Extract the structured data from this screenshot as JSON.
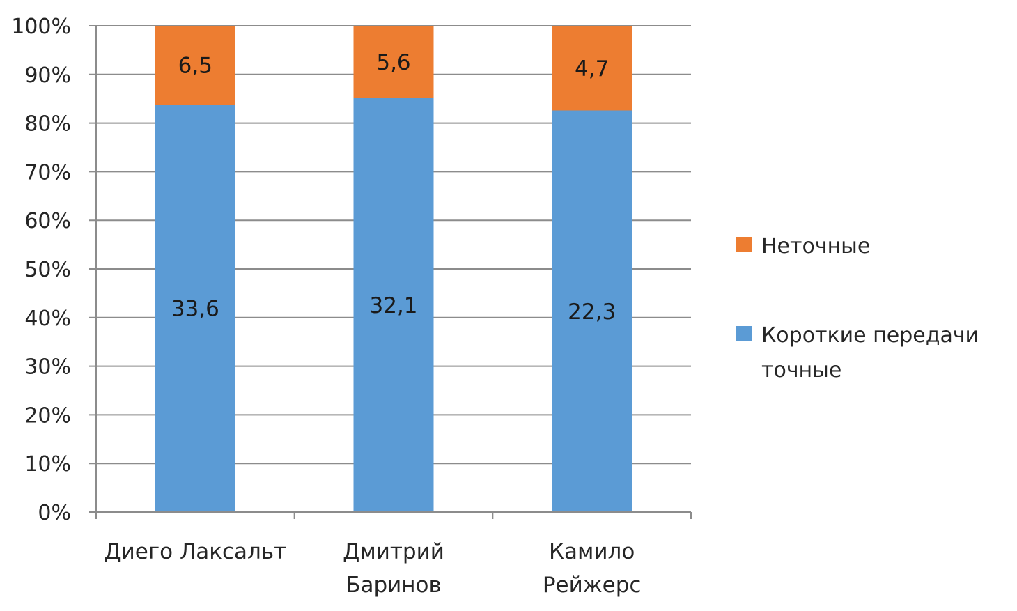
{
  "chart_data": {
    "type": "bar",
    "stacked": "percent",
    "categories": [
      [
        "Диего Лаксальт"
      ],
      [
        "Дмитрий",
        "Баринов"
      ],
      [
        "Камило",
        "Рейжерс"
      ]
    ],
    "series": [
      {
        "name": "Короткие передачи точные",
        "legend_lines": [
          "Короткие передачи",
          "точные"
        ],
        "color": "#5b9bd5",
        "values": [
          33.6,
          32.1,
          22.3
        ],
        "labels": [
          "33,6",
          "32,1",
          "22,3"
        ]
      },
      {
        "name": "Неточные",
        "legend_lines": [
          "Неточные"
        ],
        "color": "#ed7d31",
        "values": [
          6.5,
          5.6,
          4.7
        ],
        "labels": [
          "6,5",
          "5,6",
          "4,7"
        ]
      }
    ],
    "y_ticks": [
      "0%",
      "10%",
      "20%",
      "30%",
      "40%",
      "50%",
      "60%",
      "70%",
      "80%",
      "90%",
      "100%"
    ],
    "ylim": [
      0,
      100
    ],
    "grid": true,
    "legend_position": "right",
    "title": "",
    "xlabel": "",
    "ylabel": ""
  }
}
